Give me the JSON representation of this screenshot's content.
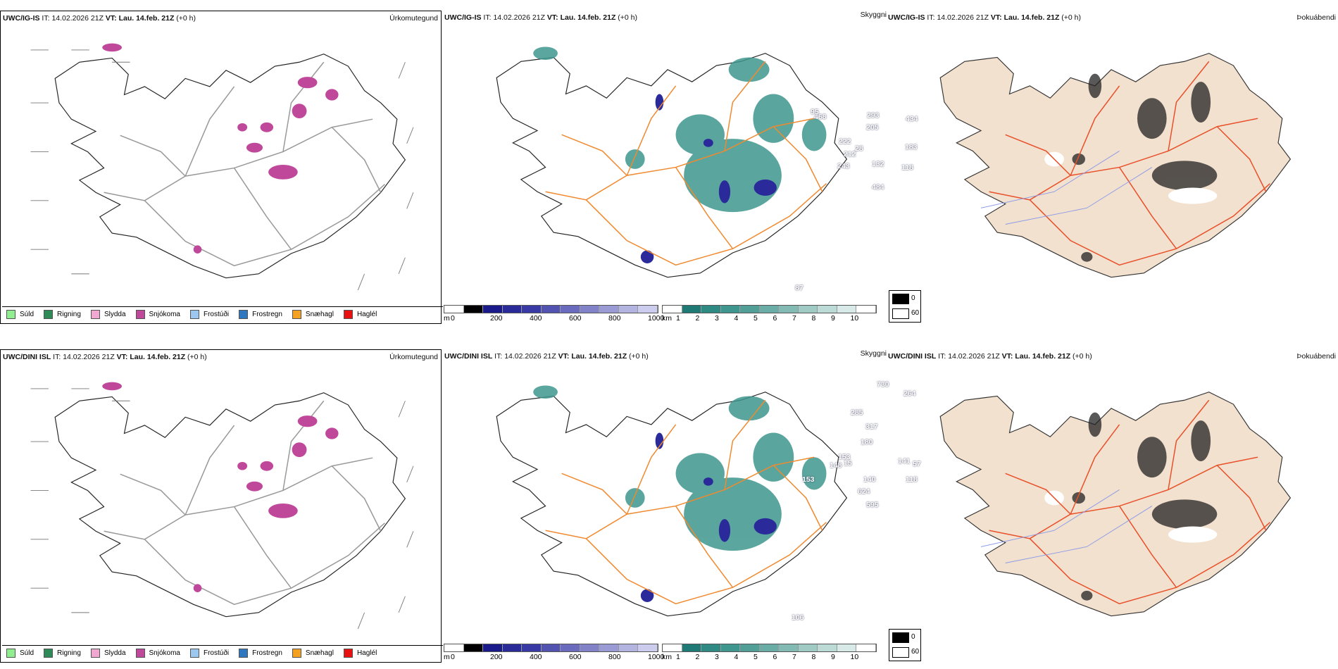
{
  "rows": [
    {
      "model": "UWC/IG-IS",
      "it_label": "IT:",
      "it_value": "14.02.2026 21Z",
      "vt_label": "VT:",
      "vt_value": "Lau. 14.feb. 21Z",
      "lead": "(+0 h)",
      "cloud_labels": [
        "212",
        "28",
        "243",
        "132",
        "118",
        "484",
        "183",
        "222",
        "205",
        "293",
        "468",
        "95",
        "434",
        "87"
      ]
    },
    {
      "model": "UWC/DINI ISL",
      "it_label": "IT:",
      "it_value": "14.02.2026 21Z",
      "vt_label": "VT:",
      "vt_value": "Lau. 14.feb. 21Z",
      "lead": "(+0 h)",
      "cloud_labels": [
        "148",
        "15",
        "153",
        "153",
        "140",
        "624",
        "595",
        "118",
        "141",
        "57",
        "180",
        "317",
        "285",
        "730",
        "264",
        "106"
      ]
    }
  ],
  "panel_titles": {
    "precip_type": "Úrkomutegund",
    "visibility": "Skyggni",
    "fog": "Þokuábendi"
  },
  "precip_legend": [
    {
      "label": "Súld",
      "color": "#90ee90"
    },
    {
      "label": "Rigning",
      "color": "#2e8b57"
    },
    {
      "label": "Slydda",
      "color": "#f0a8d0"
    },
    {
      "label": "Snjókoma",
      "color": "#c0489a"
    },
    {
      "label": "Frostúði",
      "color": "#9cc8f0"
    },
    {
      "label": "Frostregn",
      "color": "#2f78c0"
    },
    {
      "label": "Snæhagl",
      "color": "#f4a020"
    },
    {
      "label": "Haglél",
      "color": "#e81010"
    }
  ],
  "cloud_base_legend": {
    "unit": "m",
    "ticks": [
      "0",
      "200",
      "400",
      "600",
      "800",
      "1000"
    ]
  },
  "visibility_legend": {
    "unit": "km",
    "ticks": [
      "1",
      "2",
      "3",
      "4",
      "5",
      "6",
      "7",
      "8",
      "9",
      "10"
    ]
  },
  "fog_legend": {
    "ticks": [
      "0",
      "60"
    ]
  },
  "colors": {
    "road": "#f08a30",
    "fog_bg": "#f3e1cf",
    "teal": "#3e968e",
    "cloud_blue": "#2a2a9a"
  }
}
